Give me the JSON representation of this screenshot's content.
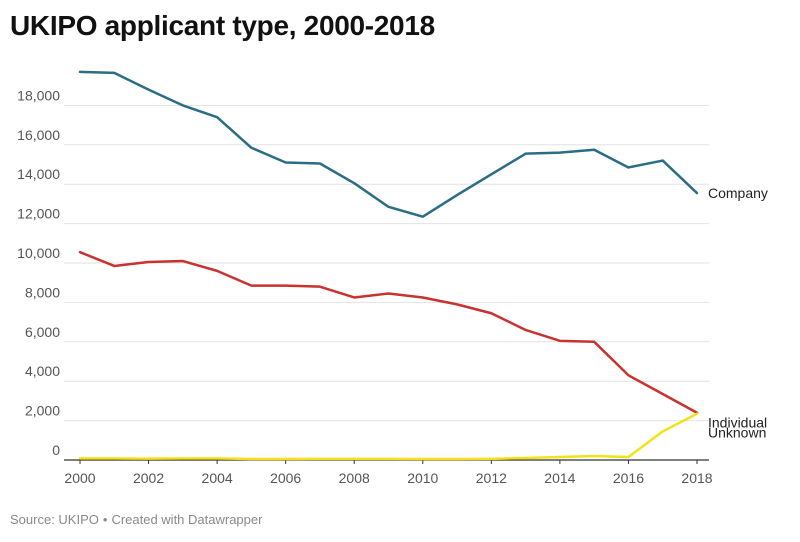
{
  "title": "UKIPO applicant type, 2000-2018",
  "footer": {
    "source": "Source: UKIPO",
    "created": "Created with Datawrapper"
  },
  "chart_data": {
    "type": "line",
    "title": "UKIPO applicant type, 2000-2018",
    "xlabel": "",
    "ylabel": "",
    "x": [
      2000,
      2001,
      2002,
      2003,
      2004,
      2005,
      2006,
      2007,
      2008,
      2009,
      2010,
      2011,
      2012,
      2013,
      2014,
      2015,
      2016,
      2017,
      2018
    ],
    "xticks": [
      "2000",
      "2002",
      "2004",
      "2006",
      "2008",
      "2010",
      "2012",
      "2014",
      "2016",
      "2018"
    ],
    "yticks": [
      "0",
      "2,000",
      "4,000",
      "6,000",
      "8,000",
      "10,000",
      "12,000",
      "14,000",
      "16,000",
      "18,000"
    ],
    "ylim": [
      0,
      20000
    ],
    "grid": true,
    "legend": "direct labels at line ends",
    "series": [
      {
        "name": "Company",
        "color": "#2a6d84",
        "values": [
          19700,
          19650,
          18800,
          18000,
          17400,
          15850,
          15100,
          15050,
          14050,
          12850,
          12350,
          13450,
          14500,
          15550,
          15600,
          15750,
          14850,
          15200,
          13550
        ]
      },
      {
        "name": "Individual",
        "color": "#c9322e",
        "values": [
          10550,
          9850,
          10050,
          10100,
          9600,
          8850,
          8850,
          8800,
          8250,
          8450,
          8250,
          7900,
          7450,
          6600,
          6050,
          6000,
          4300,
          3350,
          2400
        ]
      },
      {
        "name": "Unknown",
        "color": "#f2e21a",
        "values": [
          80,
          80,
          70,
          80,
          80,
          50,
          50,
          60,
          60,
          60,
          50,
          50,
          60,
          100,
          150,
          200,
          150,
          1450,
          2350
        ]
      }
    ]
  }
}
